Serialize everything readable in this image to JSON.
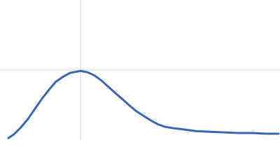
{
  "chart_data": {
    "type": "line",
    "x": [
      0.18,
      0.3,
      0.45,
      0.6,
      0.75,
      0.9,
      1.05,
      1.2,
      1.36,
      1.51,
      1.73,
      1.88,
      2.03,
      2.18,
      2.33,
      2.48,
      2.64,
      2.79,
      2.94,
      3.09,
      3.24,
      3.39,
      3.54,
      3.69,
      3.92,
      4.22,
      4.52,
      4.82,
      5.12,
      5.42,
      5.72,
      5.99
    ],
    "series": [
      {
        "color": "#3a66b0",
        "values": [
          0.03,
          0.09,
          0.2,
          0.33,
          0.49,
          0.65,
          0.79,
          0.92,
          1.0,
          1.06,
          1.09,
          1.07,
          1.02,
          0.94,
          0.84,
          0.74,
          0.64,
          0.54,
          0.45,
          0.38,
          0.31,
          0.25,
          0.21,
          0.19,
          0.17,
          0.14,
          0.13,
          0.12,
          0.11,
          0.11,
          0.1,
          0.1
        ]
      }
    ],
    "xlim": [
      0,
      6.02
    ],
    "ylim": [
      0,
      2.21
    ],
    "guides": {
      "x": 1.732,
      "y": 1.104,
      "color": "#d9d9d9"
    }
  }
}
